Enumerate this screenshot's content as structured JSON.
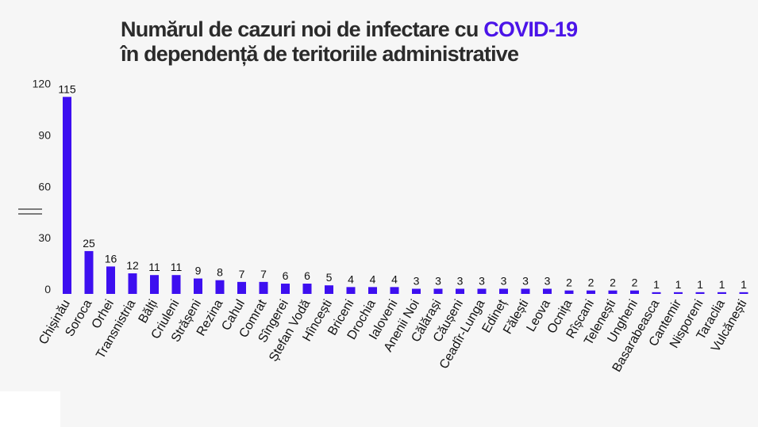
{
  "chart_data": {
    "type": "bar",
    "title_line1": "Numărul de cazuri noi de infectare cu",
    "title_highlight": "COVID-19",
    "title_line2": "în dependență de teritoriile administrative",
    "xlabel": "",
    "ylabel": "",
    "ylim": [
      0,
      120
    ],
    "yticks": [
      0,
      30,
      60,
      90,
      120
    ],
    "grid": false,
    "legend": "none",
    "bar_color": "#3d0ff0",
    "highlight_color": "#4b14e8",
    "categories": [
      "Chișinău",
      "Soroca",
      "Orhei",
      "Transnistria",
      "Bălți",
      "Criuleni",
      "Strășeni",
      "Rezina",
      "Cahul",
      "Comrat",
      "Sîngerei",
      "Ștefan Vodă",
      "Hîncești",
      "Briceni",
      "Drochia",
      "Ialoveni",
      "Anenii Noi",
      "Călărași",
      "Căușeni",
      "Ceadîr-Lunga",
      "Edineț",
      "Fălești",
      "Leova",
      "Ocnița",
      "Rîșcani",
      "Telenești",
      "Ungheni",
      "Basarabeasca",
      "Cantemir",
      "Nisporeni",
      "Taraclia",
      "Vulcănești"
    ],
    "values": [
      115,
      25,
      16,
      12,
      11,
      11,
      9,
      8,
      7,
      7,
      6,
      6,
      5,
      4,
      4,
      4,
      3,
      3,
      3,
      3,
      3,
      3,
      3,
      2,
      2,
      2,
      2,
      1,
      1,
      1,
      1,
      1
    ]
  }
}
